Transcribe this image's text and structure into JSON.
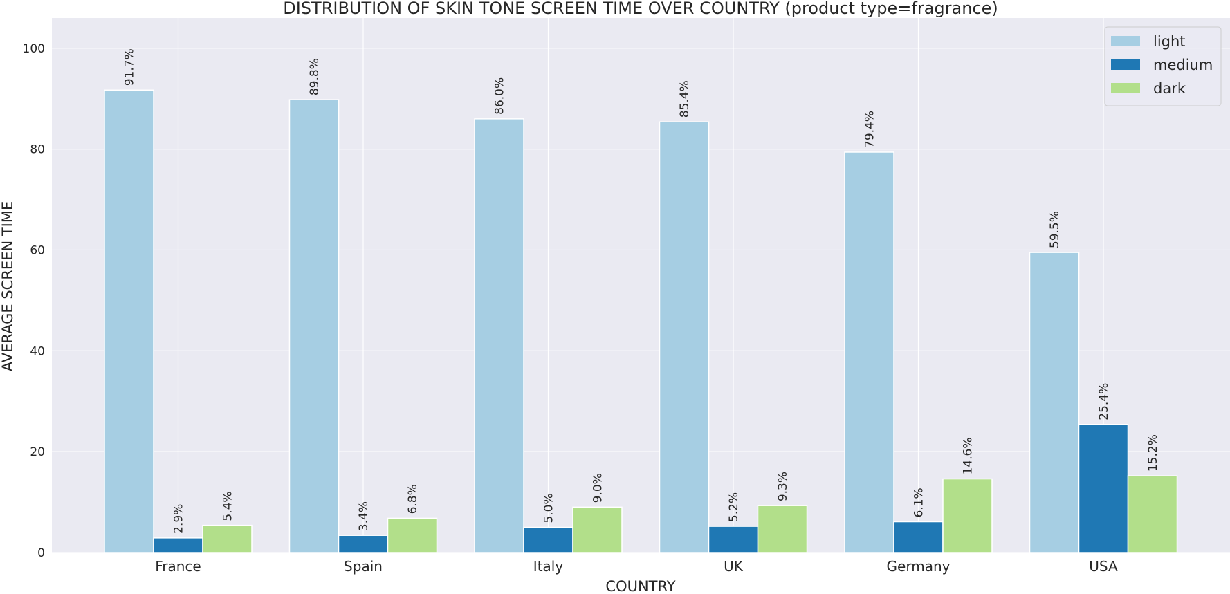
{
  "chart_data": {
    "type": "bar",
    "title": "DISTRIBUTION OF SKIN TONE SCREEN TIME OVER COUNTRY (product type=fragrance)",
    "xlabel": "COUNTRY",
    "ylabel": "AVERAGE SCREEN TIME",
    "categories": [
      "France",
      "Spain",
      "Italy",
      "UK",
      "Germany",
      "USA"
    ],
    "series": [
      {
        "name": "light",
        "color": "#a6cee3",
        "values": [
          91.7,
          89.8,
          86.0,
          85.4,
          79.4,
          59.5
        ],
        "labels": [
          "91.7%",
          "89.8%",
          "86.0%",
          "85.4%",
          "79.4%",
          "59.5%"
        ]
      },
      {
        "name": "medium",
        "color": "#1f78b4",
        "values": [
          2.9,
          3.4,
          5.0,
          5.2,
          6.1,
          25.4
        ],
        "labels": [
          "2.9%",
          "3.4%",
          "5.0%",
          "5.2%",
          "6.1%",
          "25.4%"
        ]
      },
      {
        "name": "dark",
        "color": "#b2df8a",
        "values": [
          5.4,
          6.8,
          9.0,
          9.3,
          14.6,
          15.2
        ],
        "labels": [
          "5.4%",
          "6.8%",
          "9.0%",
          "9.3%",
          "14.6%",
          "15.2%"
        ]
      }
    ],
    "yticks": [
      "0",
      "20",
      "40",
      "60",
      "80",
      "100"
    ],
    "ylim": [
      0,
      106
    ],
    "grid": true,
    "legend_position": "top-right",
    "background_color": "#eaeaf2"
  }
}
